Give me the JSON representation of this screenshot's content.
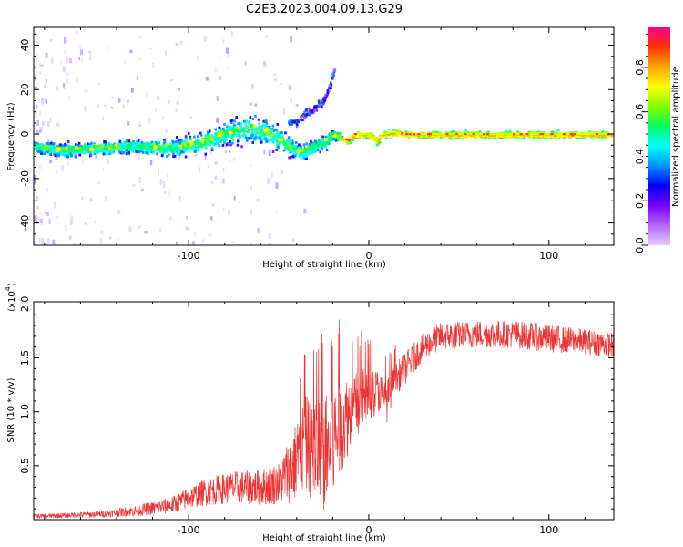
{
  "title": "C2E3.2023.004.09.13.G29",
  "chart_data": [
    {
      "type": "heatmap",
      "name": "spectrogram",
      "xlabel": "Height of straight line (km)",
      "ylabel": "Frequency (Hz)",
      "xlim": [
        -186,
        136
      ],
      "ylim": [
        -50,
        48
      ],
      "xticks": [
        -100,
        0,
        100
      ],
      "yticks": [
        -40,
        -20,
        0,
        20,
        40
      ],
      "colorbar": {
        "label": "Normalized spectral amplitude",
        "range": [
          0,
          1
        ],
        "ticks": [
          "0.0",
          "0.2",
          "0.4",
          "0.6",
          "0.8"
        ],
        "colors": [
          "#e6ccff",
          "#b366ff",
          "#7a00ff",
          "#0000ff",
          "#0090ff",
          "#00ffff",
          "#00ff60",
          "#80ff00",
          "#ffff00",
          "#ffa500",
          "#ff3300",
          "#ff0090"
        ]
      },
      "trace_x": [
        -186,
        -170,
        -150,
        -130,
        -110,
        -95,
        -85,
        -75,
        -65,
        -55,
        -45,
        -38,
        -30,
        -24,
        -20,
        -16,
        -12,
        -8,
        -4,
        0,
        4,
        8,
        14,
        20,
        40,
        60,
        80,
        100,
        120,
        136
      ],
      "trace_y": [
        -5,
        -7,
        -6,
        -5,
        -6,
        -4,
        -1,
        2,
        3,
        1,
        -5,
        -8,
        -5,
        -3,
        0,
        -1,
        -3,
        0,
        0,
        0,
        -3,
        0,
        1,
        0,
        0,
        0,
        0,
        0,
        0,
        0
      ],
      "trace_spread": [
        3,
        4,
        4,
        4,
        5,
        6,
        7,
        7,
        8,
        7,
        6,
        5,
        4,
        4,
        3,
        2,
        2,
        2,
        2,
        2,
        2,
        2,
        2,
        2,
        2,
        2,
        2,
        2,
        2,
        2
      ],
      "secondary_trace_x": [
        -40,
        -35,
        -30,
        -25,
        -22,
        -20,
        -19
      ],
      "secondary_trace_y": [
        6,
        10,
        12,
        16,
        22,
        28,
        32
      ]
    },
    {
      "type": "line",
      "name": "snr",
      "xlabel": "Height of straight line (km)",
      "ylabel": "SNR (10 * v/v)",
      "exponent_label": "(x10",
      "exponent_power": "4",
      "exponent_close": ")",
      "xlim": [
        -186,
        136
      ],
      "ylim": [
        0,
        2.02
      ],
      "xticks": [
        -100,
        0,
        100
      ],
      "yticks": [
        0.5,
        1.0,
        1.5,
        2.0
      ],
      "ytick_labels": [
        "0.5",
        "1.0",
        "1.5",
        "2.0"
      ],
      "series": [
        {
          "name": "SNR",
          "color": "#ee3333",
          "envelope_x": [
            -186,
            -150,
            -130,
            -110,
            -100,
            -90,
            -75,
            -60,
            -50,
            -42,
            -35,
            -30,
            -25,
            -20,
            -15,
            -10,
            -5,
            0,
            5,
            10,
            15,
            20,
            25,
            30,
            40,
            60,
            80,
            100,
            120,
            136
          ],
          "envelope_mean": [
            0.03,
            0.05,
            0.08,
            0.13,
            0.2,
            0.26,
            0.3,
            0.3,
            0.34,
            0.5,
            0.7,
            0.65,
            0.6,
            0.7,
            0.9,
            1.0,
            1.1,
            1.15,
            1.2,
            1.1,
            1.3,
            1.4,
            1.5,
            1.6,
            1.7,
            1.72,
            1.72,
            1.68,
            1.65,
            1.62
          ],
          "envelope_noise": [
            0.02,
            0.03,
            0.05,
            0.08,
            0.1,
            0.13,
            0.15,
            0.17,
            0.2,
            0.35,
            0.45,
            0.5,
            0.55,
            0.55,
            0.45,
            0.35,
            0.3,
            0.25,
            0.2,
            0.2,
            0.15,
            0.15,
            0.14,
            0.13,
            0.13,
            0.13,
            0.13,
            0.13,
            0.12,
            0.12
          ]
        }
      ]
    }
  ]
}
